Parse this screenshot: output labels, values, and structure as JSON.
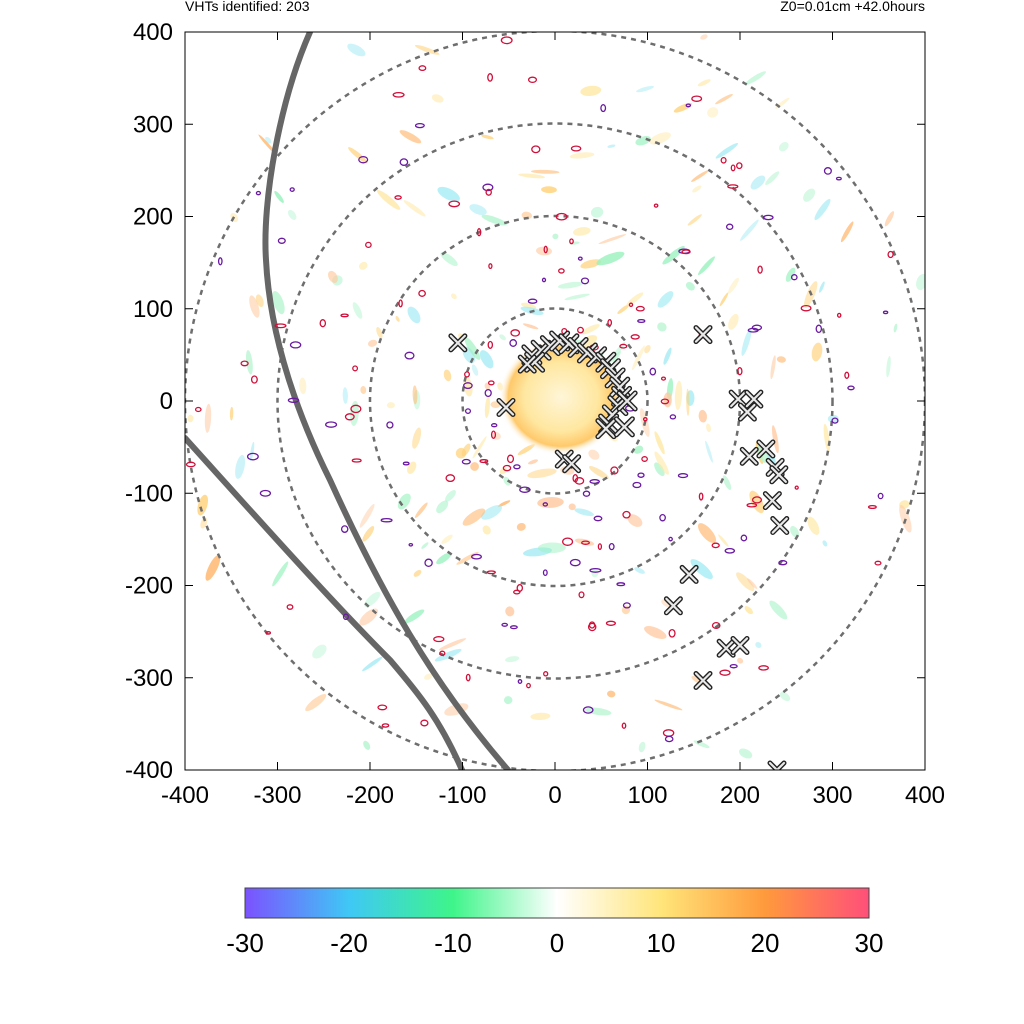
{
  "header": {
    "left": "VHTs identified: 203",
    "right": "Z0=0.01cm  +42.0hours"
  },
  "chart_data": {
    "type": "scatter",
    "x_range": [
      -400,
      400
    ],
    "y_range": [
      -400,
      400
    ],
    "x_ticks": [
      -400,
      -300,
      -200,
      -100,
      0,
      100,
      200,
      300,
      400
    ],
    "y_ticks": [
      -400,
      -300,
      -200,
      -100,
      0,
      100,
      200,
      300,
      400
    ],
    "x_tick_labels": [
      "-400",
      "-300",
      "-200",
      "-100",
      "0",
      "100",
      "200",
      "300",
      "400"
    ],
    "y_tick_labels": [
      "400",
      "300",
      "200",
      "100",
      "0",
      "-100",
      "-200",
      "-300",
      "-400"
    ],
    "range_rings": [
      100,
      200,
      300,
      400
    ],
    "eyewall_markers": [
      [
        -25,
        50
      ],
      [
        -15,
        55
      ],
      [
        -5,
        60
      ],
      [
        5,
        65
      ],
      [
        15,
        62
      ],
      [
        25,
        58
      ],
      [
        35,
        52
      ],
      [
        45,
        48
      ],
      [
        55,
        42
      ],
      [
        60,
        35
      ],
      [
        65,
        25
      ],
      [
        70,
        15
      ],
      [
        72,
        5
      ],
      [
        68,
        -5
      ],
      [
        62,
        -15
      ],
      [
        58,
        -25
      ],
      [
        55,
        -30
      ],
      [
        75,
        -28
      ],
      [
        78,
        0
      ],
      [
        -22,
        42
      ]
    ],
    "vht_markers": [
      [
        -105,
        63
      ],
      [
        -53,
        -7
      ],
      [
        10,
        -63
      ],
      [
        18,
        -68
      ],
      [
        -30,
        40
      ],
      [
        160,
        72
      ],
      [
        198,
        2
      ],
      [
        215,
        2
      ],
      [
        208,
        -12
      ],
      [
        228,
        -52
      ],
      [
        210,
        -60
      ],
      [
        238,
        -72
      ],
      [
        242,
        -80
      ],
      [
        235,
        -108
      ],
      [
        243,
        -135
      ],
      [
        145,
        -188
      ],
      [
        128,
        -222
      ],
      [
        185,
        -268
      ],
      [
        200,
        -265
      ],
      [
        160,
        -303
      ],
      [
        240,
        -400
      ]
    ],
    "colorbar": {
      "min": -30,
      "max": 30,
      "ticks": [
        -30,
        -20,
        -10,
        0,
        10,
        20,
        30
      ],
      "tick_labels": [
        "-30",
        "-20",
        "-10",
        "0",
        "10",
        "20",
        "30"
      ],
      "colors": [
        "#7b52ff",
        "#3fc8f5",
        "#3ef58a",
        "#ffffff",
        "#ffe57a",
        "#ff9a3c",
        "#ff4f7a"
      ]
    },
    "tracks": {
      "color": "#666666"
    }
  }
}
